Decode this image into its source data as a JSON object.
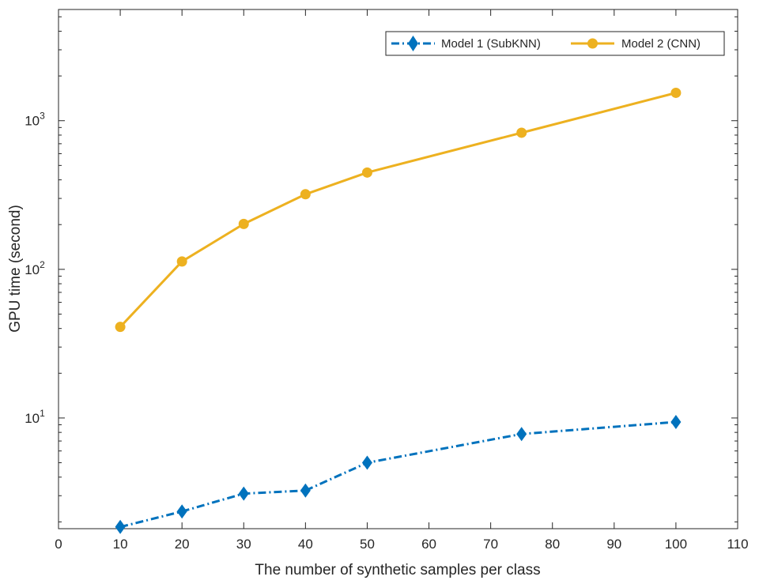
{
  "chart_data": {
    "type": "line",
    "title": "",
    "xlabel": "The number of synthetic samples per class",
    "ylabel": "GPU time (second)",
    "xlim": [
      0,
      110
    ],
    "ylim": [
      1.8,
      5600
    ],
    "yscale": "log",
    "grid": false,
    "legend_position": "top-right",
    "x_ticks": [
      "0",
      "10",
      "20",
      "30",
      "40",
      "50",
      "60",
      "70",
      "80",
      "90",
      "100",
      "110"
    ],
    "y_ticks": [
      {
        "value": 10,
        "base": "10",
        "exp": "1"
      },
      {
        "value": 100,
        "base": "10",
        "exp": "2"
      },
      {
        "value": 1000,
        "base": "10",
        "exp": "3"
      }
    ],
    "x": [
      10,
      20,
      30,
      40,
      50,
      75,
      100
    ],
    "series": [
      {
        "name": "Model 1 (SubKNN)",
        "color": "#0072BD",
        "marker": "diamond",
        "line_style": "dash-dot",
        "values": [
          1.85,
          2.35,
          3.1,
          3.25,
          5.0,
          7.8,
          9.4
        ]
      },
      {
        "name": "Model 2 (CNN)",
        "color": "#EDB120",
        "marker": "circle",
        "line_style": "solid",
        "values": [
          41,
          113,
          202,
          320,
          448,
          830,
          1540
        ]
      }
    ]
  }
}
